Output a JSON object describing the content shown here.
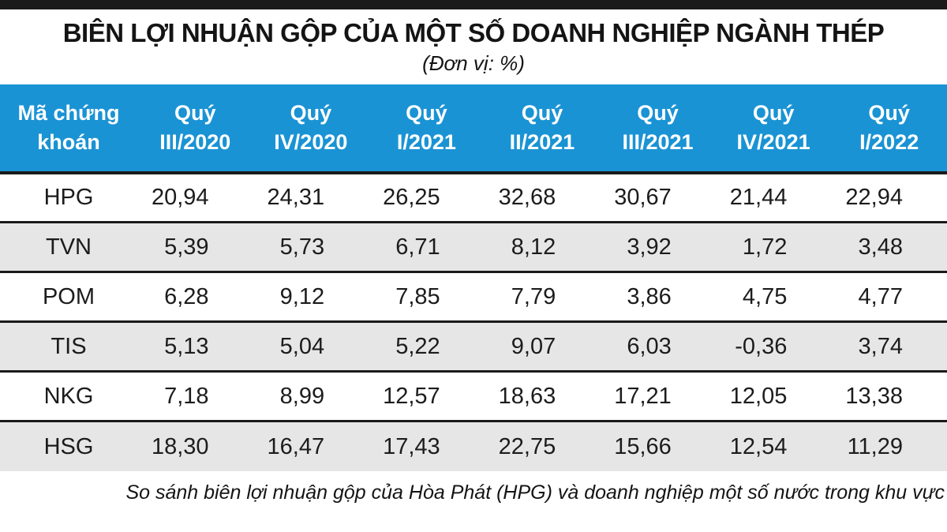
{
  "header": {
    "title": "BIÊN LỢI NHUẬN GỘP CỦA MỘT SỐ DOANH NGHIỆP NGÀNH THÉP",
    "unit_note": "(Đơn vị: %)"
  },
  "footer": {
    "caption": "So sánh biên lợi nhuận gộp của Hòa Phát (HPG) và doanh nghiệp một số nước trong khu vực"
  },
  "colors": {
    "header_bg": "#1a93d4",
    "header_text": "#ffffff",
    "row_alt_bg": "#e6e6e6",
    "divider": "#1a1a1a"
  },
  "chart_data": {
    "type": "table",
    "title": "BIÊN LỢI NHUẬN GỘP CỦA MỘT SỐ DOANH NGHIỆP NGÀNH THÉP",
    "unit": "%",
    "columns": [
      "Mã chứng\nkhoán",
      "Quý\nIII/2020",
      "Quý\nIV/2020",
      "Quý\nI/2021",
      "Quý\nII/2021",
      "Quý\nIII/2021",
      "Quý\nIV/2021",
      "Quý\nI/2022"
    ],
    "rows": [
      {
        "ticker": "HPG",
        "values": [
          "20,94",
          "24,31",
          "26,25",
          "32,68",
          "30,67",
          "21,44",
          "22,94"
        ]
      },
      {
        "ticker": "TVN",
        "values": [
          "5,39",
          "5,73",
          "6,71",
          "8,12",
          "3,92",
          "1,72",
          "3,48"
        ]
      },
      {
        "ticker": "POM",
        "values": [
          "6,28",
          "9,12",
          "7,85",
          "7,79",
          "3,86",
          "4,75",
          "4,77"
        ]
      },
      {
        "ticker": "TIS",
        "values": [
          "5,13",
          "5,04",
          "5,22",
          "9,07",
          "6,03",
          "-0,36",
          "3,74"
        ]
      },
      {
        "ticker": "NKG",
        "values": [
          "7,18",
          "8,99",
          "12,57",
          "18,63",
          "17,21",
          "12,05",
          "13,38"
        ]
      },
      {
        "ticker": "HSG",
        "values": [
          "18,30",
          "16,47",
          "17,43",
          "22,75",
          "15,66",
          "12,54",
          "11,29"
        ]
      }
    ]
  }
}
